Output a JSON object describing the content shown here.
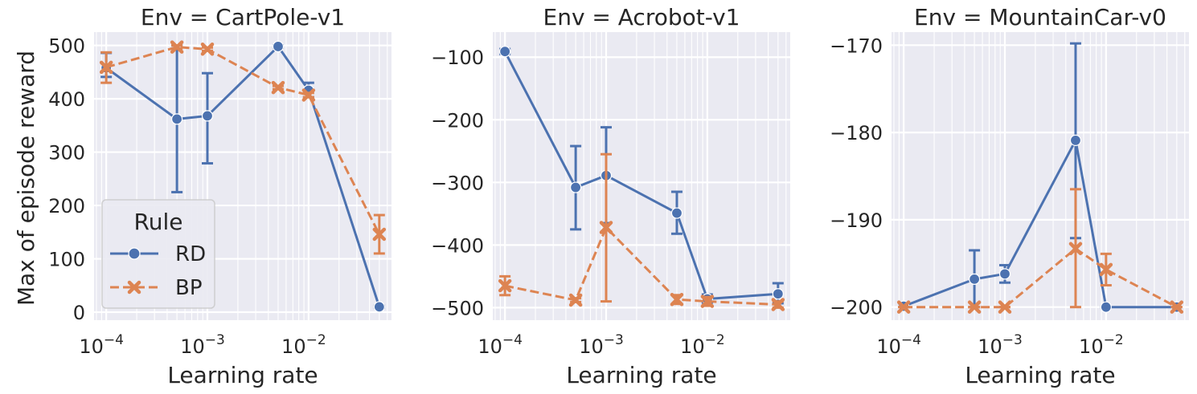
{
  "figure": {
    "xlabel": "Learning rate",
    "ylabel": "Max of episode reward",
    "legend": {
      "title": "Rule",
      "placement": "lower-left of first panel",
      "entries": [
        {
          "name": "RD",
          "color": "#4c72b0",
          "marker": "circle",
          "linestyle": "solid"
        },
        {
          "name": "BP",
          "color": "#dd8452",
          "marker": "x",
          "linestyle": "dashed"
        }
      ]
    },
    "xtick_values": [
      0.0001,
      0.001,
      0.01
    ],
    "xtick_labels": [
      {
        "base": "10",
        "exp": "−4"
      },
      {
        "base": "10",
        "exp": "−3"
      },
      {
        "base": "10",
        "exp": "−2"
      }
    ]
  },
  "chart_data": [
    {
      "type": "line",
      "title": "Env = CartPole-v1",
      "xlabel": "Learning rate",
      "ylabel": "Max of episode reward",
      "xscale": "log",
      "x": [
        0.0001,
        0.0005,
        0.001,
        0.005,
        0.01,
        0.05
      ],
      "xlim": [
        7.58e-05,
        0.066
      ],
      "ylim": [
        -15,
        525
      ],
      "yticks": [
        0,
        100,
        200,
        300,
        400,
        500
      ],
      "ytick_labels": [
        "0",
        "100",
        "200",
        "300",
        "400",
        "500"
      ],
      "series": [
        {
          "name": "RD",
          "values": [
            458,
            362,
            368,
            498,
            416,
            10
          ],
          "err_low": [
            441,
            225,
            279,
            496,
            403,
            8
          ],
          "err_high": [
            486,
            500,
            448,
            500,
            430,
            12
          ]
        },
        {
          "name": "BP",
          "values": [
            459,
            497,
            493,
            421,
            407,
            146
          ],
          "err_low": [
            430,
            494,
            490,
            418,
            403,
            110
          ],
          "err_high": [
            487,
            500,
            496,
            424,
            411,
            182
          ]
        }
      ]
    },
    {
      "type": "line",
      "title": "Env = Acrobot-v1",
      "xlabel": "Learning rate",
      "ylabel": "",
      "xscale": "log",
      "x": [
        0.0001,
        0.0005,
        0.001,
        0.005,
        0.01,
        0.05
      ],
      "xlim": [
        7.58e-05,
        0.066
      ],
      "ylim": [
        -520,
        -60
      ],
      "yticks": [
        -500,
        -400,
        -300,
        -200,
        -100
      ],
      "ytick_labels": [
        "−500",
        "−400",
        "−300",
        "−200",
        "−100"
      ],
      "series": [
        {
          "name": "RD",
          "values": [
            -91,
            -308,
            -289,
            -349,
            -486,
            -478
          ],
          "err_low": [
            -95,
            -375,
            -365,
            -382,
            -492,
            -493
          ],
          "err_high": [
            -87,
            -242,
            -212,
            -315,
            -479,
            -461
          ]
        },
        {
          "name": "BP",
          "values": [
            -465,
            -488,
            -372,
            -487,
            -490,
            -495
          ],
          "err_low": [
            -480,
            -491,
            -490,
            -494,
            -497,
            -500
          ],
          "err_high": [
            -450,
            -485,
            -255,
            -480,
            -483,
            -490
          ]
        }
      ]
    },
    {
      "type": "line",
      "title": "Env = MountainCar-v0",
      "xlabel": "Learning rate",
      "ylabel": "",
      "xscale": "log",
      "x": [
        0.0001,
        0.0005,
        0.001,
        0.005,
        0.01,
        0.05
      ],
      "xlim": [
        7.58e-05,
        0.066
      ],
      "ylim": [
        -201.5,
        -168.5
      ],
      "yticks": [
        -200,
        -190,
        -180,
        -170
      ],
      "ytick_labels": [
        "−200",
        "−190",
        "−180",
        "−170"
      ],
      "series": [
        {
          "name": "RD",
          "values": [
            -199.9,
            -196.8,
            -196.2,
            -180.9,
            -200,
            -200
          ],
          "err_low": [
            -200,
            -200,
            -197.2,
            -192.1,
            -200,
            -200
          ],
          "err_high": [
            -199.7,
            -193.5,
            -195.2,
            -169.8,
            -200,
            -200
          ]
        },
        {
          "name": "BP",
          "values": [
            -200,
            -200,
            -200,
            -193.3,
            -195.7,
            -200
          ],
          "err_low": [
            -200,
            -200,
            -200,
            -200,
            -197.5,
            -200
          ],
          "err_high": [
            -200,
            -200,
            -200,
            -186.5,
            -193.9,
            -200
          ]
        }
      ]
    }
  ]
}
